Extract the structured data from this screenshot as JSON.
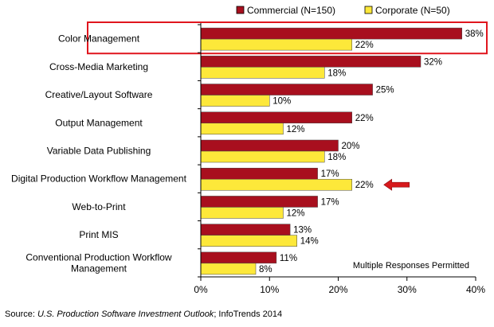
{
  "chart_data": {
    "type": "bar",
    "orientation": "horizontal",
    "categories": [
      "Color Management",
      "Cross-Media Marketing",
      "Creative/Layout Software",
      "Output Management",
      "Variable Data Publishing",
      "Digital Production Workflow Management",
      "Web-to-Print",
      "Print MIS",
      "Conventional Production Workflow Management"
    ],
    "series": [
      {
        "name": "Commercial (N=150)",
        "color": "#a80f1e",
        "values": [
          38,
          32,
          25,
          22,
          20,
          17,
          17,
          13,
          11
        ]
      },
      {
        "name": "Corporate (N=50)",
        "color": "#fde83a",
        "values": [
          22,
          18,
          10,
          12,
          18,
          22,
          12,
          14,
          8
        ]
      }
    ],
    "value_suffix": "%",
    "xlim": [
      0,
      40
    ],
    "xticks": [
      "0%",
      "10%",
      "20%",
      "30%",
      "40%"
    ],
    "legend_position": "top-right",
    "highlighted_category": "Color Management",
    "highlight_color": "#e0161e",
    "arrow_category": "Digital Production Workflow Management",
    "arrow_color": "#d7191c",
    "note": "Multiple Responses Permitted"
  },
  "source": {
    "prefix": "Source:",
    "publication": "U.S. Production Software Investment Outlook",
    "suffix": "; InfoTrends 2014"
  }
}
